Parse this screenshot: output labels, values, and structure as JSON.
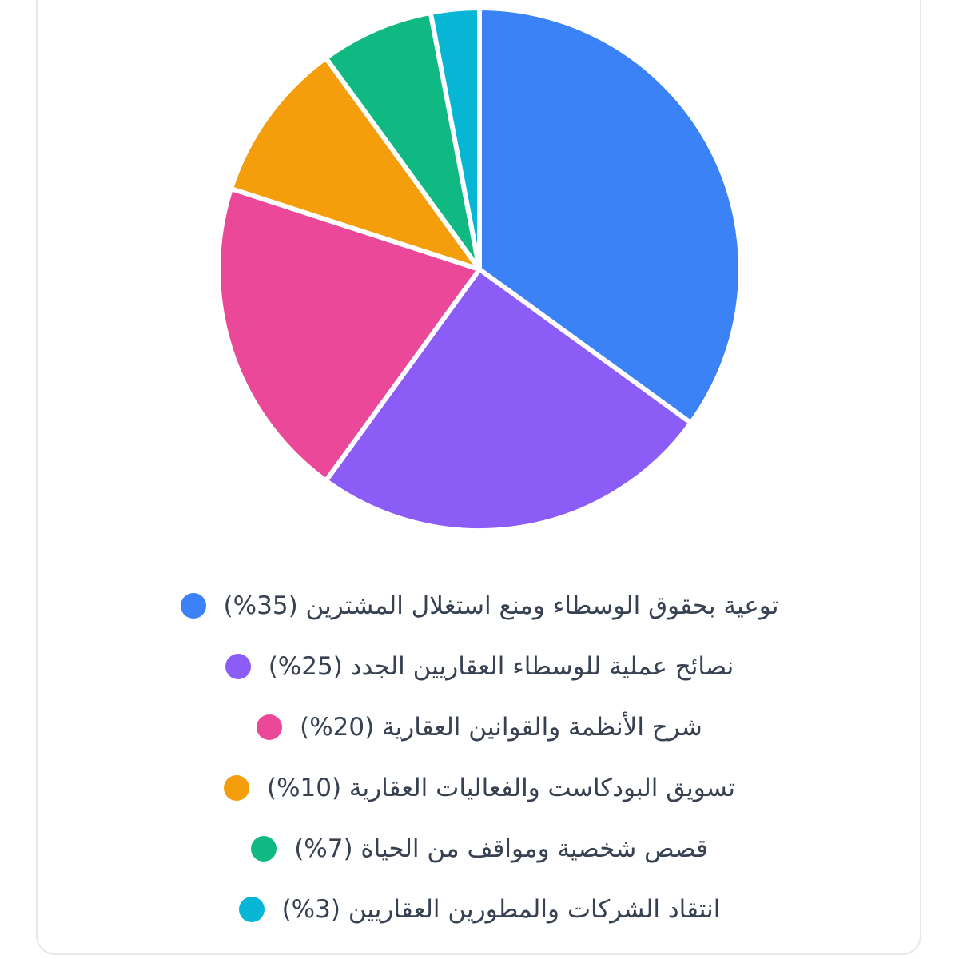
{
  "chart_data": {
    "type": "pie",
    "title": "",
    "legend_position": "bottom",
    "slices": [
      {
        "label": "توعية بحقوق الوسطاء ومنع استغلال المشترين",
        "value": 35,
        "value_text": "(35%)",
        "color": "#3b82f6"
      },
      {
        "label": "نصائح عملية للوسطاء العقاريين الجدد",
        "value": 25,
        "value_text": "(25%)",
        "color": "#8b5cf6"
      },
      {
        "label": "شرح الأنظمة والقوانين العقارية",
        "value": 20,
        "value_text": "(20%)",
        "color": "#ec4899"
      },
      {
        "label": "تسويق البودكاست والفعاليات العقارية",
        "value": 10,
        "value_text": "(10%)",
        "color": "#f59e0b"
      },
      {
        "label": "قصص شخصية ومواقف من الحياة",
        "value": 7,
        "value_text": "(7%)",
        "color": "#10b981"
      },
      {
        "label": "انتقاد الشركات والمطورين العقاريين",
        "value": 3,
        "value_text": "(3%)",
        "color": "#06b6d4"
      }
    ]
  }
}
